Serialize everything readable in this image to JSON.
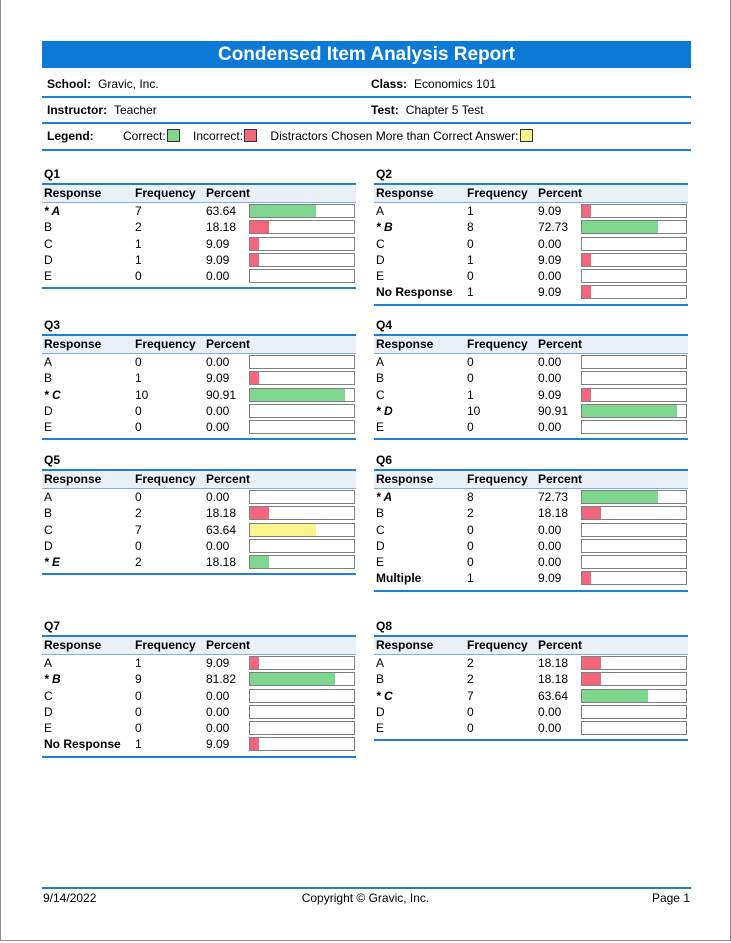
{
  "report": {
    "title": "Condensed Item Analysis Report"
  },
  "info": {
    "school_label": "School:",
    "school": "Gravic, Inc.",
    "class_label": "Class:",
    "class": "Economics 101",
    "instructor_label": "Instructor:",
    "instructor": "Teacher",
    "test_label": "Test:",
    "test": "Chapter 5 Test"
  },
  "legend": {
    "label": "Legend:",
    "correct": "Correct:",
    "incorrect": "Incorrect:",
    "distractor": "Distractors Chosen More than Correct Answer:"
  },
  "colors": {
    "correct": "#7fd68e",
    "incorrect": "#f2677c",
    "distractor": "#fbf48c",
    "accent": "#1f7fd0",
    "title_bar": "#0a7ad6"
  },
  "columns": {
    "response": "Response",
    "frequency": "Frequency",
    "percent": "Percent"
  },
  "questions": [
    {
      "title": "Q1",
      "rows": [
        {
          "r": "* A",
          "f": "7",
          "p": "63.64",
          "pct": 63.64,
          "kind": "correct"
        },
        {
          "r": "B",
          "f": "2",
          "p": "18.18",
          "pct": 18.18,
          "kind": "incorrect"
        },
        {
          "r": "C",
          "f": "1",
          "p": "9.09",
          "pct": 9.09,
          "kind": "incorrect"
        },
        {
          "r": "D",
          "f": "1",
          "p": "9.09",
          "pct": 9.09,
          "kind": "incorrect"
        },
        {
          "r": "E",
          "f": "0",
          "p": "0.00",
          "pct": 0,
          "kind": "incorrect"
        }
      ]
    },
    {
      "title": "Q2",
      "rows": [
        {
          "r": "A",
          "f": "1",
          "p": "9.09",
          "pct": 9.09,
          "kind": "incorrect"
        },
        {
          "r": "* B",
          "f": "8",
          "p": "72.73",
          "pct": 72.73,
          "kind": "correct"
        },
        {
          "r": "C",
          "f": "0",
          "p": "0.00",
          "pct": 0,
          "kind": "incorrect"
        },
        {
          "r": "D",
          "f": "1",
          "p": "9.09",
          "pct": 9.09,
          "kind": "incorrect"
        },
        {
          "r": "E",
          "f": "0",
          "p": "0.00",
          "pct": 0,
          "kind": "incorrect"
        },
        {
          "r": "No Response",
          "f": "1",
          "p": "9.09",
          "pct": 9.09,
          "kind": "incorrect",
          "bold": true
        }
      ]
    },
    {
      "title": "Q3",
      "rows": [
        {
          "r": "A",
          "f": "0",
          "p": "0.00",
          "pct": 0,
          "kind": "incorrect"
        },
        {
          "r": "B",
          "f": "1",
          "p": "9.09",
          "pct": 9.09,
          "kind": "incorrect"
        },
        {
          "r": "* C",
          "f": "10",
          "p": "90.91",
          "pct": 90.91,
          "kind": "correct"
        },
        {
          "r": "D",
          "f": "0",
          "p": "0.00",
          "pct": 0,
          "kind": "incorrect"
        },
        {
          "r": "E",
          "f": "0",
          "p": "0.00",
          "pct": 0,
          "kind": "incorrect"
        }
      ]
    },
    {
      "title": "Q4",
      "rows": [
        {
          "r": "A",
          "f": "0",
          "p": "0.00",
          "pct": 0,
          "kind": "incorrect"
        },
        {
          "r": "B",
          "f": "0",
          "p": "0.00",
          "pct": 0,
          "kind": "incorrect"
        },
        {
          "r": "C",
          "f": "1",
          "p": "9.09",
          "pct": 9.09,
          "kind": "incorrect"
        },
        {
          "r": "* D",
          "f": "10",
          "p": "90.91",
          "pct": 90.91,
          "kind": "correct"
        },
        {
          "r": "E",
          "f": "0",
          "p": "0.00",
          "pct": 0,
          "kind": "incorrect"
        }
      ]
    },
    {
      "title": "Q5",
      "rows": [
        {
          "r": "A",
          "f": "0",
          "p": "0.00",
          "pct": 0,
          "kind": "incorrect"
        },
        {
          "r": "B",
          "f": "2",
          "p": "18.18",
          "pct": 18.18,
          "kind": "incorrect"
        },
        {
          "r": "C",
          "f": "7",
          "p": "63.64",
          "pct": 63.64,
          "kind": "distractor"
        },
        {
          "r": "D",
          "f": "0",
          "p": "0.00",
          "pct": 0,
          "kind": "incorrect"
        },
        {
          "r": "* E",
          "f": "2",
          "p": "18.18",
          "pct": 18.18,
          "kind": "correct"
        }
      ]
    },
    {
      "title": "Q6",
      "rows": [
        {
          "r": "* A",
          "f": "8",
          "p": "72.73",
          "pct": 72.73,
          "kind": "correct"
        },
        {
          "r": "B",
          "f": "2",
          "p": "18.18",
          "pct": 18.18,
          "kind": "incorrect"
        },
        {
          "r": "C",
          "f": "0",
          "p": "0.00",
          "pct": 0,
          "kind": "incorrect"
        },
        {
          "r": "D",
          "f": "0",
          "p": "0.00",
          "pct": 0,
          "kind": "incorrect"
        },
        {
          "r": "E",
          "f": "0",
          "p": "0.00",
          "pct": 0,
          "kind": "incorrect"
        },
        {
          "r": "Multiple",
          "f": "1",
          "p": "9.09",
          "pct": 9.09,
          "kind": "incorrect",
          "bold": true
        }
      ]
    },
    {
      "title": "Q7",
      "rows": [
        {
          "r": "A",
          "f": "1",
          "p": "9.09",
          "pct": 9.09,
          "kind": "incorrect"
        },
        {
          "r": "* B",
          "f": "9",
          "p": "81.82",
          "pct": 81.82,
          "kind": "correct"
        },
        {
          "r": "C",
          "f": "0",
          "p": "0.00",
          "pct": 0,
          "kind": "incorrect"
        },
        {
          "r": "D",
          "f": "0",
          "p": "0.00",
          "pct": 0,
          "kind": "incorrect"
        },
        {
          "r": "E",
          "f": "0",
          "p": "0.00",
          "pct": 0,
          "kind": "incorrect"
        },
        {
          "r": "No Response",
          "f": "1",
          "p": "9.09",
          "pct": 9.09,
          "kind": "incorrect",
          "bold": true
        }
      ]
    },
    {
      "title": "Q8",
      "rows": [
        {
          "r": "A",
          "f": "2",
          "p": "18.18",
          "pct": 18.18,
          "kind": "incorrect"
        },
        {
          "r": "B",
          "f": "2",
          "p": "18.18",
          "pct": 18.18,
          "kind": "incorrect"
        },
        {
          "r": "* C",
          "f": "7",
          "p": "63.64",
          "pct": 63.64,
          "kind": "correct"
        },
        {
          "r": "D",
          "f": "0",
          "p": "0.00",
          "pct": 0,
          "kind": "incorrect"
        },
        {
          "r": "E",
          "f": "0",
          "p": "0.00",
          "pct": 0,
          "kind": "incorrect"
        }
      ]
    }
  ],
  "footer": {
    "date": "9/14/2022",
    "copyright": "Copyright © Gravic, Inc.",
    "page": "Page 1"
  }
}
